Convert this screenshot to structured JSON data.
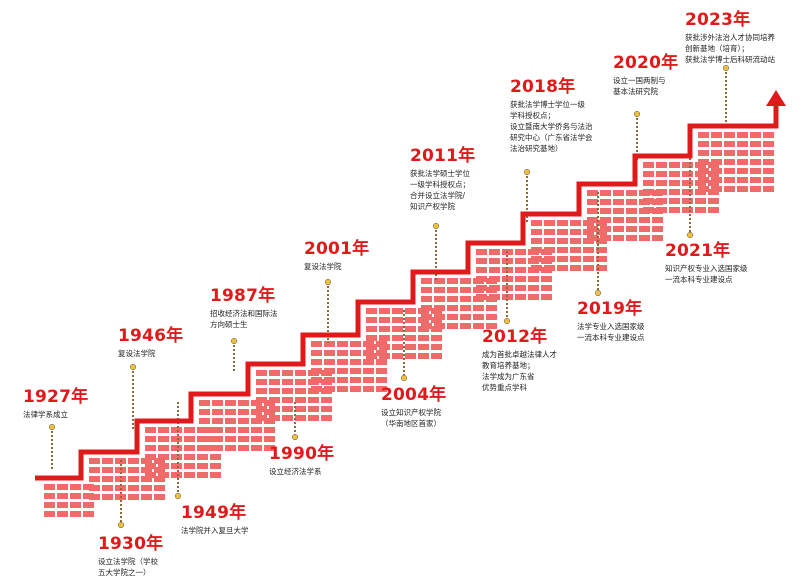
{
  "colors": {
    "red": "#e01a1a",
    "block": "#f06a6a",
    "dot_gold": "#f1c13c",
    "dot_brown": "#8a6b3a",
    "text": "#222222"
  },
  "milestones": [
    {
      "year": "1927年",
      "lines": [
        "法律学系成立"
      ]
    },
    {
      "year": "1930年",
      "lines": [
        "设立法学院（学校",
        "五大学院之一）"
      ]
    },
    {
      "year": "1946年",
      "lines": [
        "复设法学院"
      ]
    },
    {
      "year": "1949年",
      "lines": [
        "法学院并入复旦大学"
      ]
    },
    {
      "year": "1987年",
      "lines": [
        "招收经济法和国际法",
        "方向硕士生"
      ]
    },
    {
      "year": "1990年",
      "lines": [
        "设立经济法学系"
      ]
    },
    {
      "year": "2001年",
      "lines": [
        "复设法学院"
      ]
    },
    {
      "year": "2004年",
      "lines": [
        "设立知识产权学院",
        "（华南地区首家）"
      ]
    },
    {
      "year": "2011年",
      "lines": [
        "获批法学硕士学位",
        "一级学科授权点；",
        "合并设立法学院/",
        "知识产权学院"
      ]
    },
    {
      "year": "2012年",
      "lines": [
        "成为首批卓越法律人才",
        "教育培养基地；",
        "法学成为广东省",
        "优势重点学科"
      ]
    },
    {
      "year": "2018年",
      "lines": [
        "获批法学博士学位一级",
        "学科授权点；",
        "设立暨南大学侨务与法治",
        "研究中心（广东省法学会",
        "法治研究基地）"
      ]
    },
    {
      "year": "2019年",
      "lines": [
        "法学专业入选国家级",
        "一流本科专业建设点"
      ]
    },
    {
      "year": "2020年",
      "lines": [
        "设立一国两制与",
        "基本法研究院"
      ]
    },
    {
      "year": "2021年",
      "lines": [
        "知识产权专业入选国家级",
        "一流本科专业建设点"
      ]
    },
    {
      "year": "2023年",
      "lines": [
        "获批涉外法治人才协同培养",
        "创新基地（培育）；",
        "获批法学博士后科研流动站"
      ]
    }
  ]
}
